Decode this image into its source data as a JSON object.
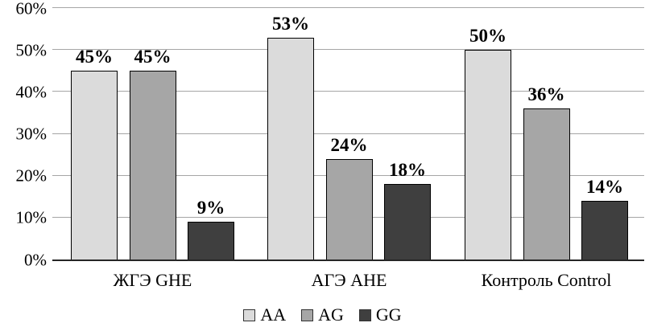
{
  "chart_data": {
    "type": "bar",
    "title": "",
    "categories": [
      "ЖГЭ GHE",
      "АГЭ AHE",
      "Контроль Control"
    ],
    "series": [
      {
        "name": "AA",
        "values": [
          45,
          53,
          50
        ],
        "color": "#DBDBDB"
      },
      {
        "name": "AG",
        "values": [
          45,
          24,
          36
        ],
        "color": "#A6A6A6"
      },
      {
        "name": "GG",
        "values": [
          9,
          18,
          14
        ],
        "color": "#3F3F3F"
      }
    ],
    "value_labels": [
      [
        "45%",
        "53%",
        "50%"
      ],
      [
        "45%",
        "24%",
        "36%"
      ],
      [
        "9%",
        "18%",
        "14%"
      ]
    ],
    "y_ticks": [
      "0%",
      "10%",
      "20%",
      "30%",
      "40%",
      "50%",
      "60%"
    ],
    "y_tick_values": [
      0,
      10,
      20,
      30,
      40,
      50,
      60
    ],
    "ylim": [
      0,
      60
    ],
    "grid": true,
    "legend_position": "bottom",
    "legend_entries": [
      "AA",
      "AG",
      "GG"
    ],
    "colors": {
      "gridline": "#A6A6A6",
      "bar_border": "#000000",
      "axis_line": "#262626",
      "background": "#FFFFFF",
      "text": "#000000"
    }
  }
}
